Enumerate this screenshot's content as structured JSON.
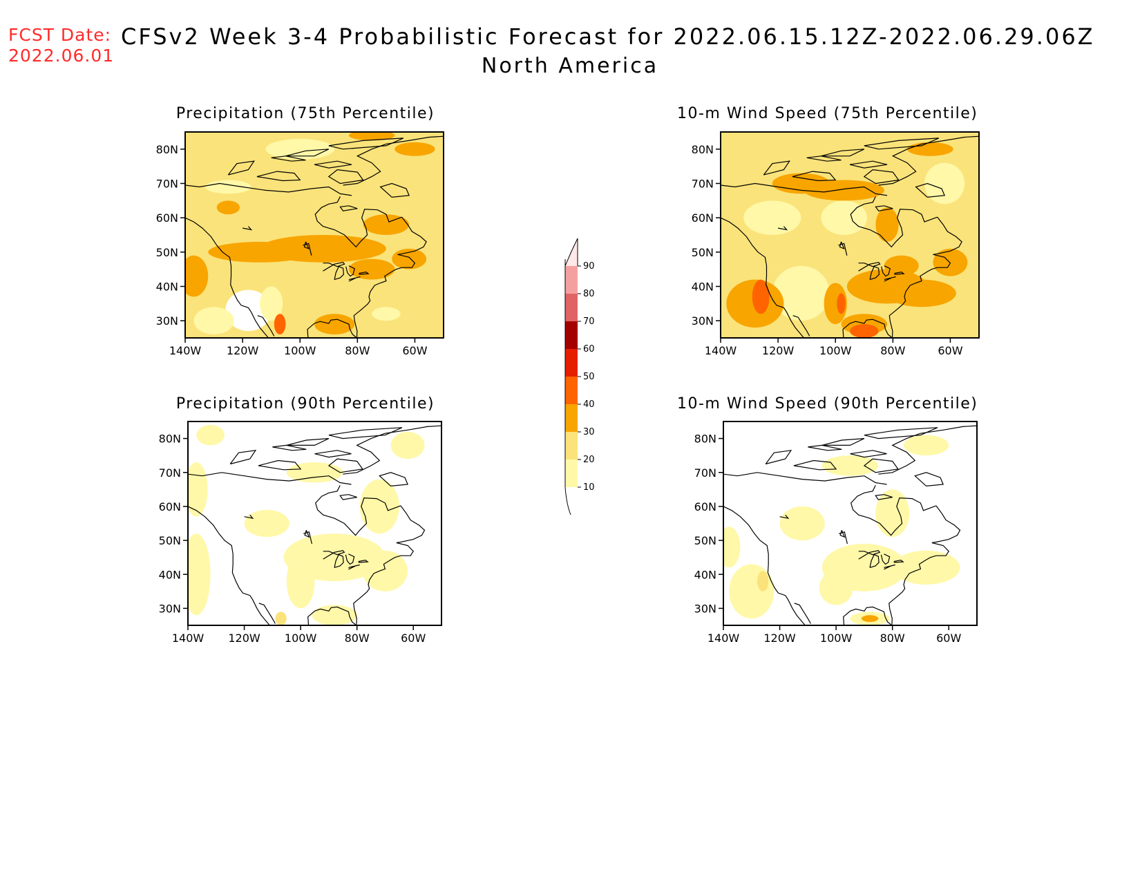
{
  "header": {
    "fcst_label": "FCST Date:",
    "fcst_date": "2022.06.01",
    "title": "CFSv2 Week 3-4 Probabilistic Forecast for 2022.06.15.12Z-2022.06.29.06Z",
    "subtitle": "North America"
  },
  "colors": {
    "c10": "#fff8a8",
    "c20": "#fae37a",
    "c30": "#f8a500",
    "c40": "#ff6400",
    "c50": "#e61e00",
    "c60": "#a50000",
    "c70": "#e06464",
    "c80": "#f5a0a0",
    "c90": "#ffe8e8"
  },
  "colorbar": {
    "levels": [
      "10",
      "20",
      "30",
      "40",
      "50",
      "60",
      "70",
      "80",
      "90"
    ]
  },
  "axes": {
    "lat_labels": [
      "30N",
      "40N",
      "50N",
      "60N",
      "70N",
      "80N"
    ],
    "lon_labels": [
      "140W",
      "120W",
      "100W",
      "80W",
      "60W"
    ]
  },
  "panels": [
    {
      "id": "precip75",
      "title": "Precipitation (75th Percentile)"
    },
    {
      "id": "wind75",
      "title": "10-m Wind Speed (75th Percentile)"
    },
    {
      "id": "precip90",
      "title": "Precipitation (90th Percentile)"
    },
    {
      "id": "wind90",
      "title": "10-m Wind Speed (90th Percentile)"
    }
  ]
}
